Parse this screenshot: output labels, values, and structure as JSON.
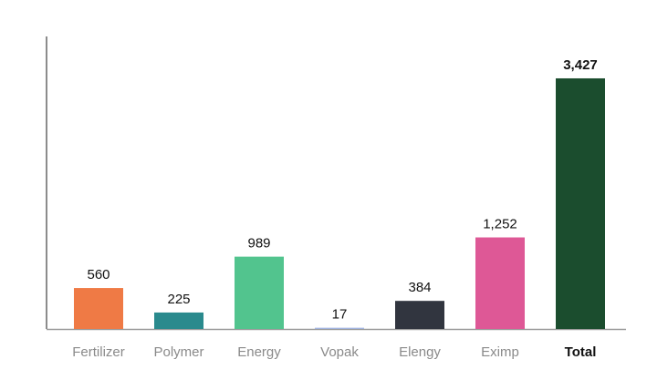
{
  "chart_data": {
    "type": "bar",
    "categories": [
      "Fertilizer",
      "Polymer",
      "Energy",
      "Vopak",
      "Elengy",
      "Eximp",
      "Total"
    ],
    "values": [
      560,
      225,
      989,
      17,
      384,
      1252,
      3427
    ],
    "value_labels": [
      "560",
      "225",
      "989",
      "17",
      "384",
      "1,252",
      "3,427"
    ],
    "colors": [
      "#ef7a45",
      "#2a8a8d",
      "#52c48e",
      "#a3b5e0",
      "#31353f",
      "#de5896",
      "#1b4d2e"
    ],
    "ylim": [
      0,
      4000
    ]
  }
}
